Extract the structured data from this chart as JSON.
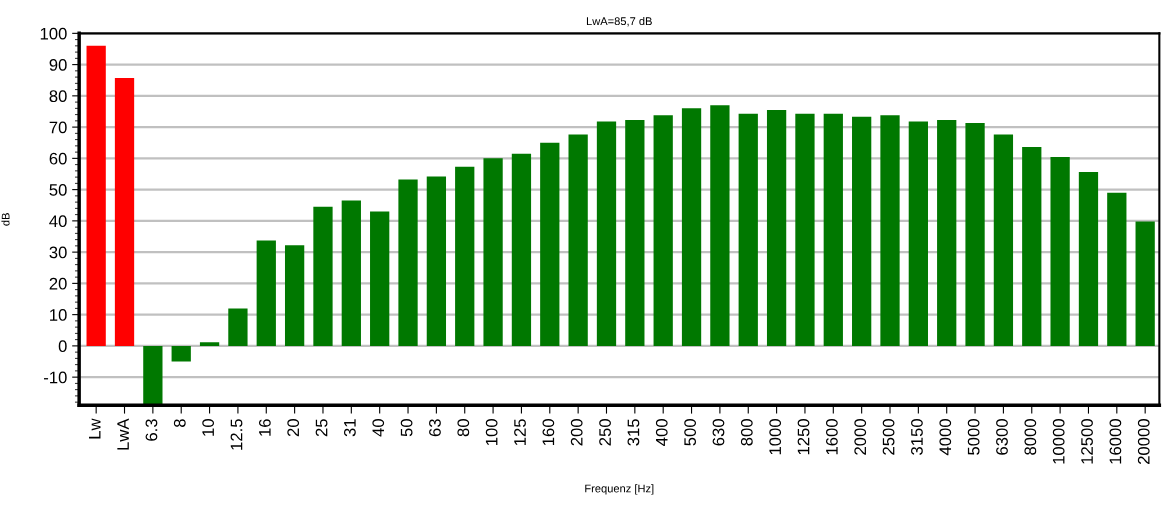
{
  "chart_data": {
    "type": "bar",
    "title": "LwA=85,7 dB",
    "xlabel": "Frequenz [Hz]",
    "ylabel": "dB",
    "categories": [
      "Lw",
      "LwA",
      "6.3",
      "8",
      "10",
      "12.5",
      "16",
      "20",
      "25",
      "31",
      "40",
      "50",
      "63",
      "80",
      "100",
      "125",
      "160",
      "200",
      "250",
      "315",
      "400",
      "500",
      "630",
      "800",
      "1000",
      "1250",
      "1600",
      "2000",
      "2500",
      "3150",
      "4000",
      "5000",
      "6300",
      "8000",
      "10000",
      "12500",
      "16000",
      "20000"
    ],
    "values": [
      96,
      85.7,
      -19,
      -5,
      1.2,
      12,
      33.7,
      32.2,
      44.5,
      46.5,
      43,
      53.2,
      54.2,
      57.3,
      60,
      61.5,
      65,
      67.6,
      71.8,
      72.3,
      73.8,
      76,
      77,
      74.3,
      75.5,
      74.3,
      74.3,
      73.3,
      73.8,
      71.8,
      72.3,
      71.3,
      67.6,
      63.6,
      60.4,
      55.6,
      49,
      39.8
    ],
    "colors": [
      "#ff0000",
      "#ff0000",
      "#007800",
      "#007800",
      "#007800",
      "#007800",
      "#007800",
      "#007800",
      "#007800",
      "#007800",
      "#007800",
      "#007800",
      "#007800",
      "#007800",
      "#007800",
      "#007800",
      "#007800",
      "#007800",
      "#007800",
      "#007800",
      "#007800",
      "#007800",
      "#007800",
      "#007800",
      "#007800",
      "#007800",
      "#007800",
      "#007800",
      "#007800",
      "#007800",
      "#007800",
      "#007800",
      "#007800",
      "#007800",
      "#007800",
      "#007800",
      "#007800",
      "#007800"
    ],
    "ylim": [
      -19,
      100
    ],
    "yticks": [
      -10,
      0,
      10,
      20,
      30,
      40,
      50,
      60,
      70,
      80,
      90,
      100
    ],
    "grid": "y"
  }
}
